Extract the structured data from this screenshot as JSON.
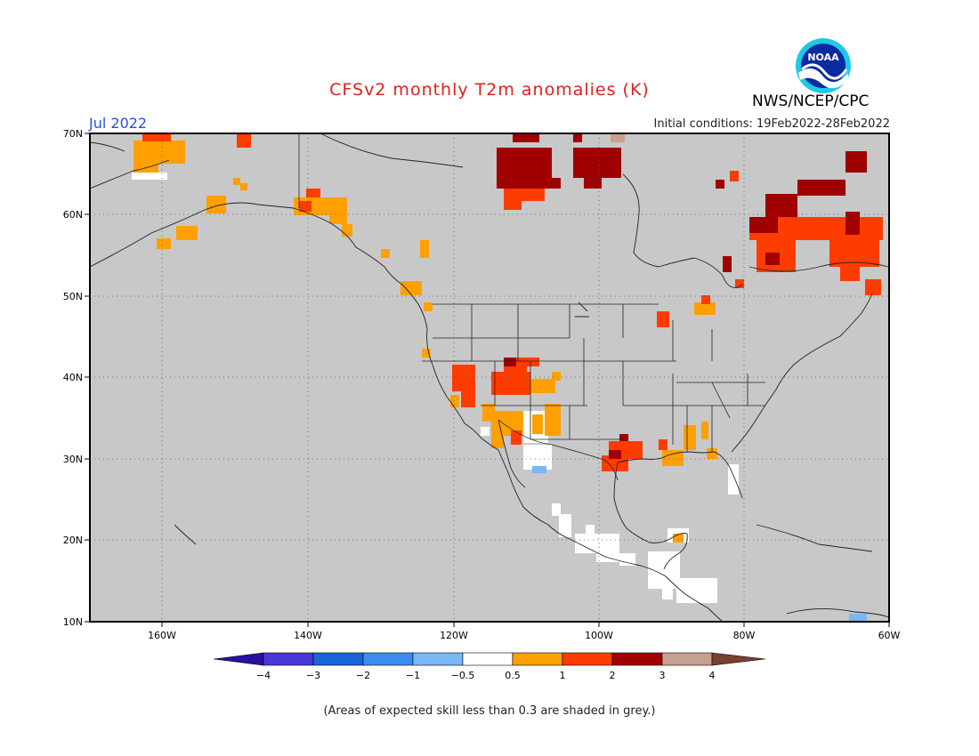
{
  "header": {
    "title": "CFSv2 monthly T2m anomalies (K)",
    "month": "Jul 2022",
    "initial_conditions": "Initial conditions: 19Feb2022-28Feb2022",
    "agency": "NWS/NCEP/CPC",
    "logo_text": "NOAA"
  },
  "map": {
    "lon_labels": [
      "160W",
      "140W",
      "120W",
      "100W",
      "80W",
      "60W"
    ],
    "lat_labels": [
      "70N",
      "60N",
      "50N",
      "40N",
      "30N",
      "20N",
      "10N"
    ],
    "background_color": "#c8c8c8",
    "grid": "dotted"
  },
  "legend": {
    "labels": [
      "−4",
      "−3",
      "−2",
      "−1",
      "−0.5",
      "0.5",
      "1",
      "2",
      "3",
      "4"
    ],
    "colors": [
      "#2a10a0",
      "#4838d8",
      "#1a64d8",
      "#3c8cf0",
      "#78b8f4",
      "#ffffff",
      "#ffa000",
      "#ff3c00",
      "#a00000",
      "#c8a090",
      "#7a4030"
    ]
  },
  "footnote": "(Areas of expected skill less than 0.3 are shaded in grey.)",
  "anomaly_regions": [
    {
      "name": "northern-alaska",
      "class": "0.5 to 1",
      "color": "#ffa000"
    },
    {
      "name": "yukon-hudson-north",
      "class": "2 to 3",
      "color": "#a00000"
    },
    {
      "name": "labrador-quebec",
      "class": "1 to 2",
      "color": "#ff3c00"
    },
    {
      "name": "southwest-us",
      "class": "1 to 2",
      "color": "#ff3c00"
    },
    {
      "name": "texas",
      "class": "1 to 2",
      "color": "#ff3c00"
    },
    {
      "name": "gulf-coast",
      "class": "0.5 to 1",
      "color": "#ffa000"
    },
    {
      "name": "mexico-central-america",
      "class": "-0.5 to 0.5",
      "color": "#ffffff"
    },
    {
      "name": "northern-mexico",
      "class": "-1 to -0.5",
      "color": "#78b8f4"
    }
  ]
}
